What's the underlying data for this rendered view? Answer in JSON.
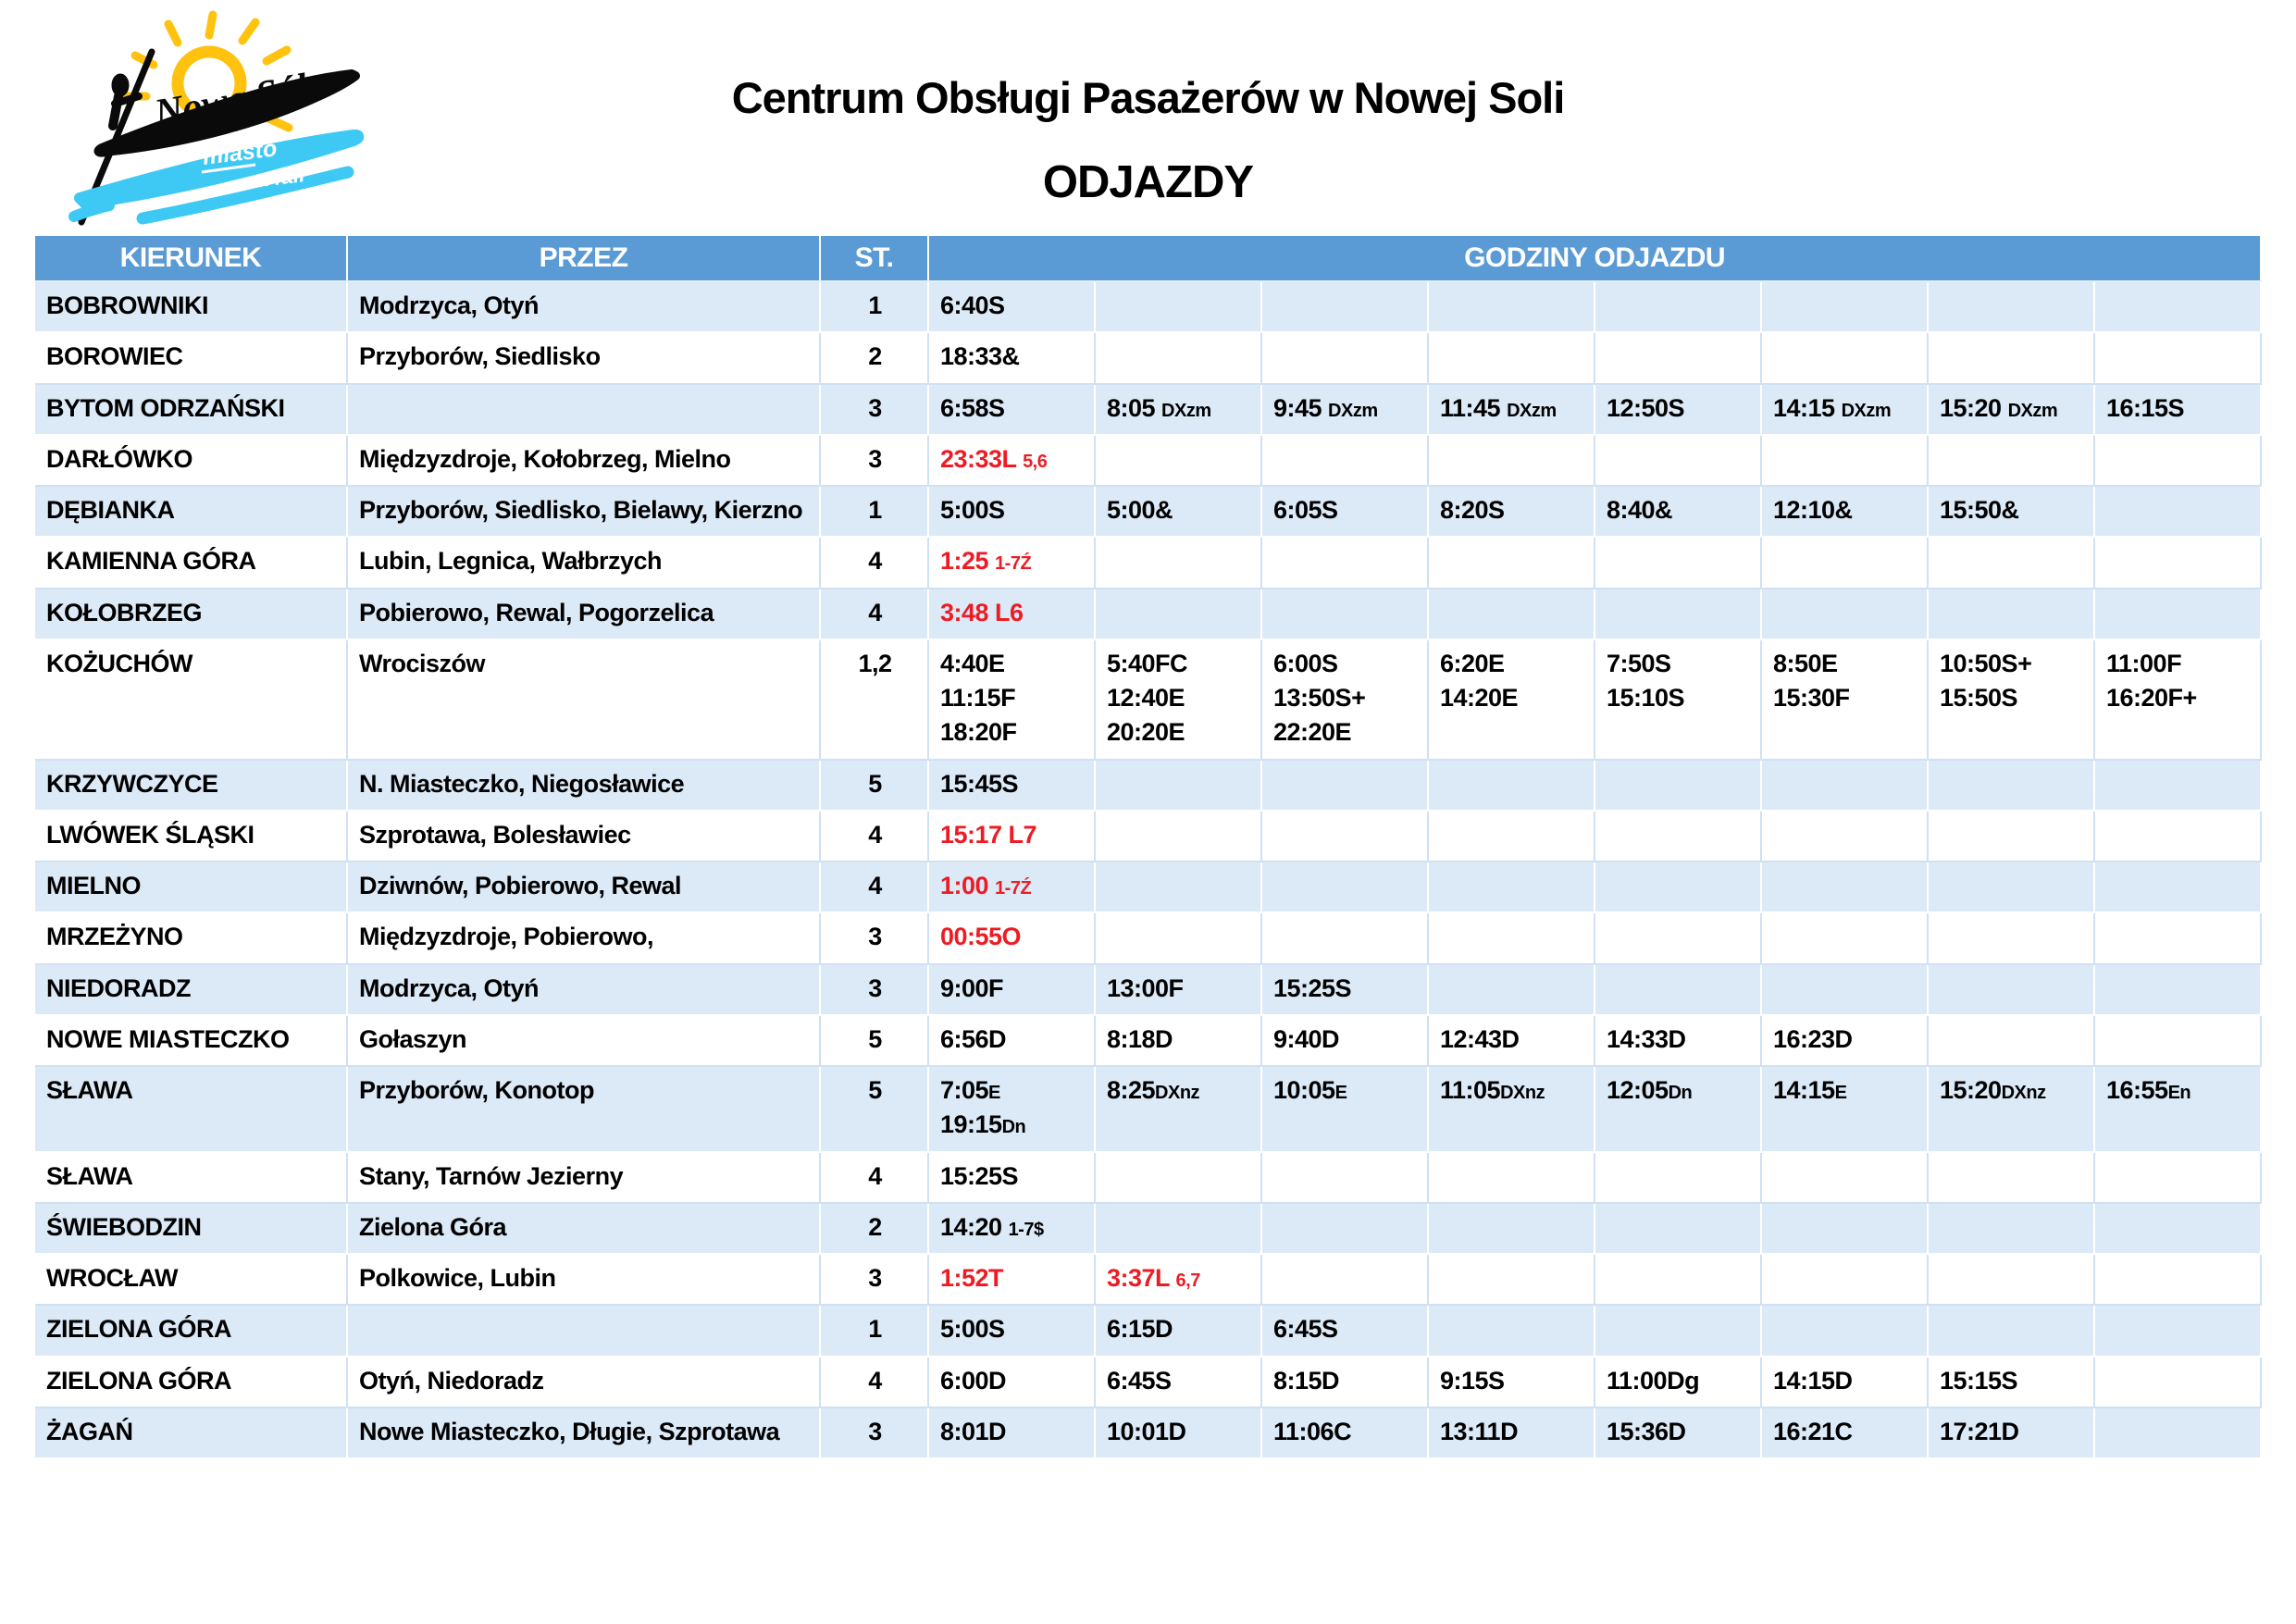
{
  "logo": {
    "city_name": "Nowa Sól",
    "tagline_line1": "miasto",
    "tagline_line2": "na fali",
    "sun_color": "#ffc20e",
    "wave_color": "#3ec9f5",
    "ink_color": "#0a0a0a"
  },
  "header": {
    "title": "Centrum Obsługi Pasażerów w Nowej Soli",
    "subtitle": "ODJAZDY"
  },
  "table": {
    "accent_color": "#5b9bd5",
    "stripe_color": "#dce9f7",
    "red_color": "#ed1c24",
    "columns": {
      "kierunek": "KIERUNEK",
      "przez": "PRZEZ",
      "st": "ST.",
      "godziny": "GODZINY ODJAZDU"
    },
    "rows": [
      {
        "kierunek": "BOBROWNIKI",
        "przez": "Modrzyca, Otyń",
        "st": "1",
        "times": [
          [
            {
              "m": "6:40S"
            }
          ]
        ]
      },
      {
        "kierunek": "BOROWIEC",
        "przez": "Przyborów, Siedlisko",
        "st": "2",
        "times": [
          [
            {
              "m": "18:33&"
            }
          ]
        ]
      },
      {
        "kierunek": "BYTOM ODRZAŃSKI",
        "przez": "",
        "st": "3",
        "times": [
          [
            {
              "m": "6:58S"
            }
          ],
          [
            {
              "m": "8:05 ",
              "s": "DXzm"
            }
          ],
          [
            {
              "m": "9:45 ",
              "s": "DXzm"
            }
          ],
          [
            {
              "m": "11:45 ",
              "s": "DXzm"
            }
          ],
          [
            {
              "m": "12:50S"
            }
          ],
          [
            {
              "m": "14:15 ",
              "s": "DXzm"
            }
          ],
          [
            {
              "m": "15:20 ",
              "s": "DXzm"
            }
          ],
          [
            {
              "m": "16:15S"
            }
          ]
        ]
      },
      {
        "kierunek": "DARŁÓWKO",
        "przez": "Międzyzdroje, Kołobrzeg, Mielno",
        "st": "3",
        "times": [
          [
            {
              "m": "23:33L ",
              "s": "5,6",
              "r": true
            }
          ]
        ]
      },
      {
        "kierunek": "DĘBIANKA",
        "przez": "Przyborów, Siedlisko, Bielawy, Kierzno",
        "st": "1",
        "times": [
          [
            {
              "m": "5:00S"
            }
          ],
          [
            {
              "m": "5:00&"
            }
          ],
          [
            {
              "m": "6:05S"
            }
          ],
          [
            {
              "m": "8:20S"
            }
          ],
          [
            {
              "m": "8:40&"
            }
          ],
          [
            {
              "m": "12:10&"
            }
          ],
          [
            {
              "m": "15:50&"
            }
          ]
        ]
      },
      {
        "kierunek": "KAMIENNA GÓRA",
        "przez": "Lubin, Legnica, Wałbrzych",
        "st": "4",
        "times": [
          [
            {
              "m": "1:25 ",
              "s": "1-7Ź",
              "r": true
            }
          ]
        ]
      },
      {
        "kierunek": "KOŁOBRZEG",
        "przez": "Pobierowo, Rewal, Pogorzelica",
        "st": "4",
        "times": [
          [
            {
              "m": "3:48 L6",
              "r": true
            }
          ]
        ]
      },
      {
        "kierunek": "KOŻUCHÓW",
        "przez": "Wrociszów",
        "st": "1,2",
        "times": [
          [
            {
              "m": "4:40E"
            },
            {
              "m": "11:15F"
            },
            {
              "m": "18:20F"
            }
          ],
          [
            {
              "m": "5:40FC"
            },
            {
              "m": "12:40E"
            },
            {
              "m": "20:20E"
            }
          ],
          [
            {
              "m": "6:00S"
            },
            {
              "m": "13:50S+"
            },
            {
              "m": "22:20E"
            }
          ],
          [
            {
              "m": "6:20E"
            },
            {
              "m": "14:20E"
            }
          ],
          [
            {
              "m": "7:50S"
            },
            {
              "m": "15:10S"
            }
          ],
          [
            {
              "m": "8:50E"
            },
            {
              "m": "15:30F"
            }
          ],
          [
            {
              "m": "10:50S+"
            },
            {
              "m": "15:50S"
            }
          ],
          [
            {
              "m": "11:00F"
            },
            {
              "m": "16:20F+"
            }
          ]
        ]
      },
      {
        "kierunek": "KRZYWCZYCE",
        "przez": "N. Miasteczko, Niegosławice",
        "st": "5",
        "times": [
          [
            {
              "m": "15:45S"
            }
          ]
        ]
      },
      {
        "kierunek": "LWÓWEK ŚLĄSKI",
        "przez": "Szprotawa, Bolesławiec",
        "st": "4",
        "times": [
          [
            {
              "m": "15:17 L7",
              "r": true
            }
          ]
        ]
      },
      {
        "kierunek": "MIELNO",
        "przez": "Dziwnów, Pobierowo, Rewal",
        "st": "4",
        "times": [
          [
            {
              "m": "1:00 ",
              "s": "1-7Ź",
              "r": true
            }
          ]
        ]
      },
      {
        "kierunek": "MRZEŻYNO",
        "przez": "Międzyzdroje, Pobierowo,",
        "st": "3",
        "times": [
          [
            {
              "m": "00:55O",
              "r": true
            }
          ]
        ]
      },
      {
        "kierunek": "NIEDORADZ",
        "przez": "Modrzyca, Otyń",
        "st": "3",
        "times": [
          [
            {
              "m": "9:00F"
            }
          ],
          [
            {
              "m": "13:00F"
            }
          ],
          [
            {
              "m": "15:25S"
            }
          ]
        ]
      },
      {
        "kierunek": "NOWE MIASTECZKO",
        "przez": "Gołaszyn",
        "st": "5",
        "times": [
          [
            {
              "m": "6:56D"
            }
          ],
          [
            {
              "m": "8:18D"
            }
          ],
          [
            {
              "m": "9:40D"
            }
          ],
          [
            {
              "m": "12:43D"
            }
          ],
          [
            {
              "m": "14:33D"
            }
          ],
          [
            {
              "m": "16:23D"
            }
          ]
        ]
      },
      {
        "kierunek": "SŁAWA",
        "przez": "Przyborów, Konotop",
        "st": "5",
        "times": [
          [
            {
              "m": "7:05",
              "s": "E"
            },
            {
              "m": "19:15",
              "s": "Dn"
            }
          ],
          [
            {
              "m": "8:25",
              "s": "DXnz"
            }
          ],
          [
            {
              "m": "10:05",
              "s": "E"
            }
          ],
          [
            {
              "m": "11:05",
              "s": "DXnz"
            }
          ],
          [
            {
              "m": "12:05",
              "s": "Dn"
            }
          ],
          [
            {
              "m": "14:15",
              "s": "E"
            }
          ],
          [
            {
              "m": "15:20",
              "s": "DXnz"
            }
          ],
          [
            {
              "m": "16:55",
              "s": "En"
            }
          ]
        ]
      },
      {
        "kierunek": "SŁAWA",
        "przez": "Stany, Tarnów Jezierny",
        "st": "4",
        "times": [
          [
            {
              "m": "15:25S"
            }
          ]
        ]
      },
      {
        "kierunek": "ŚWIEBODZIN",
        "przez": "Zielona Góra",
        "st": "2",
        "times": [
          [
            {
              "m": "14:20 ",
              "s": "1-7$"
            }
          ]
        ]
      },
      {
        "kierunek": "WROCŁAW",
        "przez": "Polkowice, Lubin",
        "st": "3",
        "times": [
          [
            {
              "m": "1:52T",
              "r": true
            }
          ],
          [
            {
              "m": "3:37L ",
              "s": "6,7",
              "r": true
            }
          ]
        ]
      },
      {
        "kierunek": "ZIELONA GÓRA",
        "przez": "",
        "st": "1",
        "times": [
          [
            {
              "m": "5:00S"
            }
          ],
          [
            {
              "m": "6:15D"
            }
          ],
          [
            {
              "m": "6:45S"
            }
          ]
        ]
      },
      {
        "kierunek": "ZIELONA GÓRA",
        "przez": "Otyń, Niedoradz",
        "st": "4",
        "times": [
          [
            {
              "m": "6:00D"
            }
          ],
          [
            {
              "m": "6:45S"
            }
          ],
          [
            {
              "m": "8:15D"
            }
          ],
          [
            {
              "m": "9:15S"
            }
          ],
          [
            {
              "m": "11:00Dg"
            }
          ],
          [
            {
              "m": "14:15D"
            }
          ],
          [
            {
              "m": "15:15S"
            }
          ]
        ]
      },
      {
        "kierunek": "ŻAGAŃ",
        "przez": "Nowe Miasteczko, Długie, Szprotawa",
        "st": "3",
        "times": [
          [
            {
              "m": "8:01D"
            }
          ],
          [
            {
              "m": "10:01D"
            }
          ],
          [
            {
              "m": "11:06C"
            }
          ],
          [
            {
              "m": "13:11D"
            }
          ],
          [
            {
              "m": "15:36D"
            }
          ],
          [
            {
              "m": "16:21C"
            }
          ],
          [
            {
              "m": "17:21D"
            }
          ]
        ]
      }
    ]
  }
}
